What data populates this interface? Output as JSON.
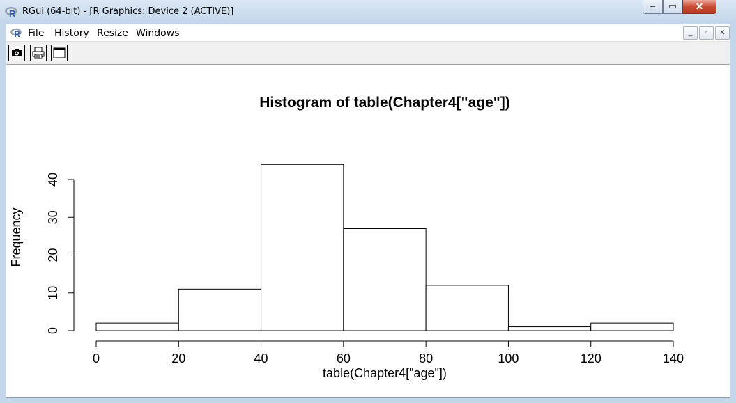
{
  "window": {
    "title": "RGui (64-bit) - [R Graphics: Device 2 (ACTIVE)]",
    "caption_min": "–",
    "caption_max": "▭",
    "caption_close": "✕"
  },
  "menu": {
    "items": [
      "File",
      "History",
      "Resize",
      "Windows"
    ],
    "mdi_min": "_",
    "mdi_restore": "▫",
    "mdi_close": "✕"
  },
  "toolbar": {
    "buttons": [
      "camera-icon",
      "printer-icon",
      "window-icon"
    ]
  },
  "chart_data": {
    "type": "bar",
    "title": "Histogram of table(Chapter4[\"age\"])",
    "xlabel": "table(Chapter4[\"age\"])",
    "ylabel": "Frequency",
    "bins": [
      [
        0,
        20
      ],
      [
        20,
        40
      ],
      [
        40,
        60
      ],
      [
        60,
        80
      ],
      [
        80,
        100
      ],
      [
        100,
        120
      ],
      [
        120,
        140
      ]
    ],
    "values": [
      2,
      11,
      44,
      27,
      12,
      1,
      2
    ],
    "xlim": [
      0,
      140
    ],
    "ylim": [
      0,
      40
    ],
    "xticks": [
      "0",
      "20",
      "40",
      "60",
      "80",
      "100",
      "120",
      "140"
    ],
    "yticks": [
      "0",
      "10",
      "20",
      "30",
      "40"
    ],
    "grid": false
  }
}
